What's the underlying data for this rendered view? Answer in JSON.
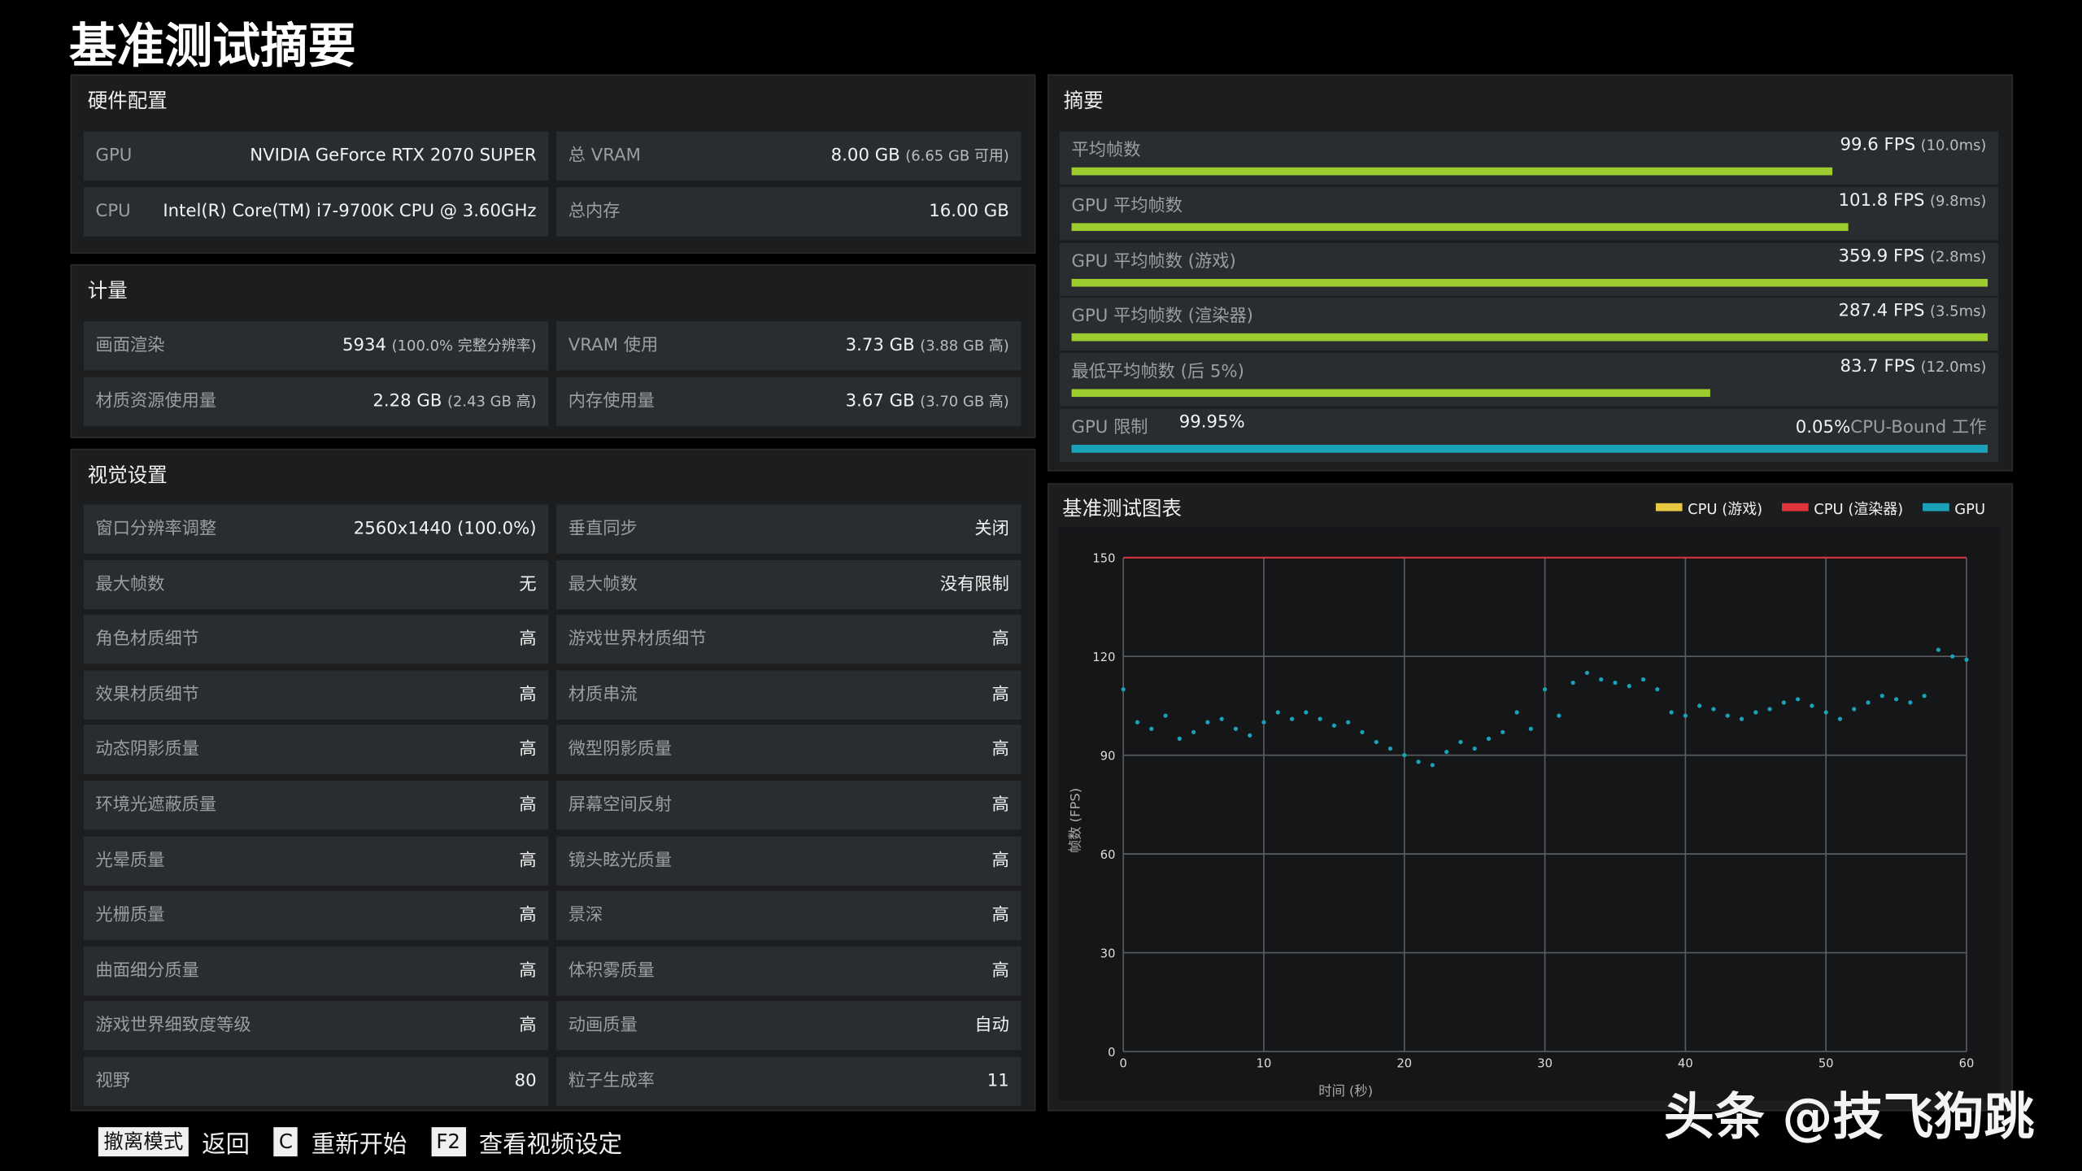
{
  "title": "基准测试摘要",
  "hardware": {
    "title": "硬件配置",
    "items": [
      {
        "label": "GPU",
        "value": "NVIDIA GeForce RTX 2070 SUPER"
      },
      {
        "label": "总 VRAM",
        "value": "8.00 GB",
        "note": "(6.65 GB 可用)"
      },
      {
        "label": "CPU",
        "value": "Intel(R) Core(TM) i7-9700K CPU @ 3.60GHz"
      },
      {
        "label": "总内存",
        "value": "16.00 GB"
      }
    ]
  },
  "metrics": {
    "title": "计量",
    "items": [
      {
        "label": "画面渲染",
        "value": "5934",
        "note": "(100.0% 完整分辨率)"
      },
      {
        "label": "VRAM 使用",
        "value": "3.73 GB",
        "note": "(3.88 GB 高)"
      },
      {
        "label": "材质资源使用量",
        "value": "2.28 GB",
        "note": "(2.43 GB 高)"
      },
      {
        "label": "内存使用量",
        "value": "3.67 GB",
        "note": "(3.70 GB 高)"
      }
    ]
  },
  "settings": {
    "title": "视觉设置",
    "items": [
      {
        "label": "窗口分辨率调整",
        "value": "2560x1440 (100.0%)"
      },
      {
        "label": "垂直同步",
        "value": "关闭"
      },
      {
        "label": "最大帧数",
        "value": "无"
      },
      {
        "label": "最大帧数",
        "value": "没有限制"
      },
      {
        "label": "角色材质细节",
        "value": "高"
      },
      {
        "label": "游戏世界材质细节",
        "value": "高"
      },
      {
        "label": "效果材质细节",
        "value": "高"
      },
      {
        "label": "材质串流",
        "value": "高"
      },
      {
        "label": "动态阴影质量",
        "value": "高"
      },
      {
        "label": "微型阴影质量",
        "value": "高"
      },
      {
        "label": "环境光遮蔽质量",
        "value": "高"
      },
      {
        "label": "屏幕空间反射",
        "value": "高"
      },
      {
        "label": "光晕质量",
        "value": "高"
      },
      {
        "label": "镜头眩光质量",
        "value": "高"
      },
      {
        "label": "光栅质量",
        "value": "高"
      },
      {
        "label": "景深",
        "value": "高"
      },
      {
        "label": "曲面细分质量",
        "value": "高"
      },
      {
        "label": "体积雾质量",
        "value": "高"
      },
      {
        "label": "游戏世界细致度等级",
        "value": "高"
      },
      {
        "label": "动画质量",
        "value": "自动"
      },
      {
        "label": "视野",
        "value": 80
      },
      {
        "label": "粒子生成率",
        "value": 11
      }
    ]
  },
  "summary": {
    "title": "摘要",
    "xlim": [
      0,
      120
    ],
    "color": "#9ccc2e",
    "items": [
      {
        "label": "平均帧数",
        "value": 99.6,
        "unit": "FPS",
        "note": "(10.0ms)"
      },
      {
        "label": "GPU 平均帧数",
        "value": 101.8,
        "unit": "FPS",
        "note": "(9.8ms)"
      },
      {
        "label": "GPU 平均帧数 (游戏)",
        "value": 359.9,
        "unit": "FPS",
        "note": "(2.8ms)"
      },
      {
        "label": "GPU 平均帧数 (渲染器)",
        "value": 287.4,
        "unit": "FPS",
        "note": "(3.5ms)"
      },
      {
        "label": "最低平均帧数 (后 5%)",
        "value": 83.7,
        "unit": "FPS",
        "note": "(12.0ms)"
      }
    ],
    "limit": {
      "label": "GPU 限制",
      "gpu": {
        "value": 99.95,
        "label": "99.95%"
      },
      "cpu": {
        "value": 0.05,
        "label": "0.05%"
      },
      "cpu_label": "CPU-Bound 工作",
      "color": "#1aa3b8"
    }
  },
  "chart_data": {
    "type": "scatter",
    "title": "基准测试图表",
    "xlabel": "时间 (秒)",
    "ylabel": "帧数 (FPS)",
    "xlim": [
      0,
      60
    ],
    "xticks": [
      0,
      10,
      20,
      30,
      40,
      50,
      60
    ],
    "ylim": [
      0,
      150
    ],
    "yticks": [
      0,
      30,
      60,
      90,
      120,
      150
    ],
    "grid": true,
    "legend": "top-right",
    "x": [
      0,
      1,
      2,
      3,
      4,
      5,
      6,
      7,
      8,
      9,
      10,
      11,
      12,
      13,
      14,
      15,
      16,
      17,
      18,
      19,
      20,
      21,
      22,
      23,
      24,
      25,
      26,
      27,
      28,
      29,
      30,
      31,
      32,
      33,
      34,
      35,
      36,
      37,
      38,
      39,
      40,
      41,
      42,
      43,
      44,
      45,
      46,
      47,
      48,
      49,
      50,
      51,
      52,
      53,
      54,
      55,
      56,
      57,
      58,
      59,
      60
    ],
    "series": [
      {
        "name": "CPU (游戏)",
        "color": "#e8c840",
        "type": "line",
        "values": [
          null,
          null,
          null,
          null,
          null,
          null,
          null,
          null,
          null,
          null,
          null,
          null,
          null,
          null,
          null,
          null,
          null,
          null,
          null,
          null,
          null,
          null,
          null,
          null,
          null,
          null,
          null,
          null,
          null,
          null,
          null,
          null,
          null,
          null,
          null,
          null,
          null,
          null,
          null,
          null,
          null,
          null,
          null,
          null,
          null,
          null,
          null,
          null,
          null,
          null,
          null,
          null,
          null,
          null,
          null,
          null,
          null,
          null,
          null,
          null,
          null
        ]
      },
      {
        "name": "CPU (渲染器)",
        "color": "#e0343c",
        "type": "line",
        "values": [
          150,
          150,
          150,
          150,
          150,
          150,
          150,
          150,
          150,
          150,
          150,
          150,
          150,
          150,
          150,
          150,
          150,
          150,
          150,
          150,
          150,
          150,
          150,
          150,
          150,
          150,
          150,
          150,
          150,
          150,
          150,
          150,
          150,
          150,
          150,
          150,
          150,
          150,
          150,
          150,
          150,
          150,
          150,
          150,
          150,
          150,
          150,
          150,
          150,
          150,
          150,
          150,
          150,
          150,
          150,
          150,
          150,
          150,
          150,
          150,
          150
        ]
      },
      {
        "name": "GPU",
        "color": "#1aa3b8",
        "type": "scatter",
        "values": [
          110,
          100,
          98,
          102,
          95,
          97,
          100,
          101,
          98,
          96,
          100,
          103,
          101,
          103,
          101,
          99,
          100,
          97,
          94,
          92,
          90,
          88,
          87,
          91,
          94,
          92,
          95,
          97,
          103,
          98,
          110,
          102,
          112,
          115,
          113,
          112,
          111,
          113,
          110,
          103,
          102,
          105,
          104,
          102,
          101,
          103,
          104,
          106,
          107,
          105,
          103,
          101,
          104,
          106,
          108,
          107,
          106,
          108,
          122,
          120,
          119
        ]
      }
    ]
  },
  "footer": [
    {
      "key": "撤离模式",
      "action": "返回"
    },
    {
      "key": "C",
      "action": "重新开始"
    },
    {
      "key": "F2",
      "action": "查看视频设定"
    }
  ],
  "watermark": "头条 @技飞狗跳"
}
